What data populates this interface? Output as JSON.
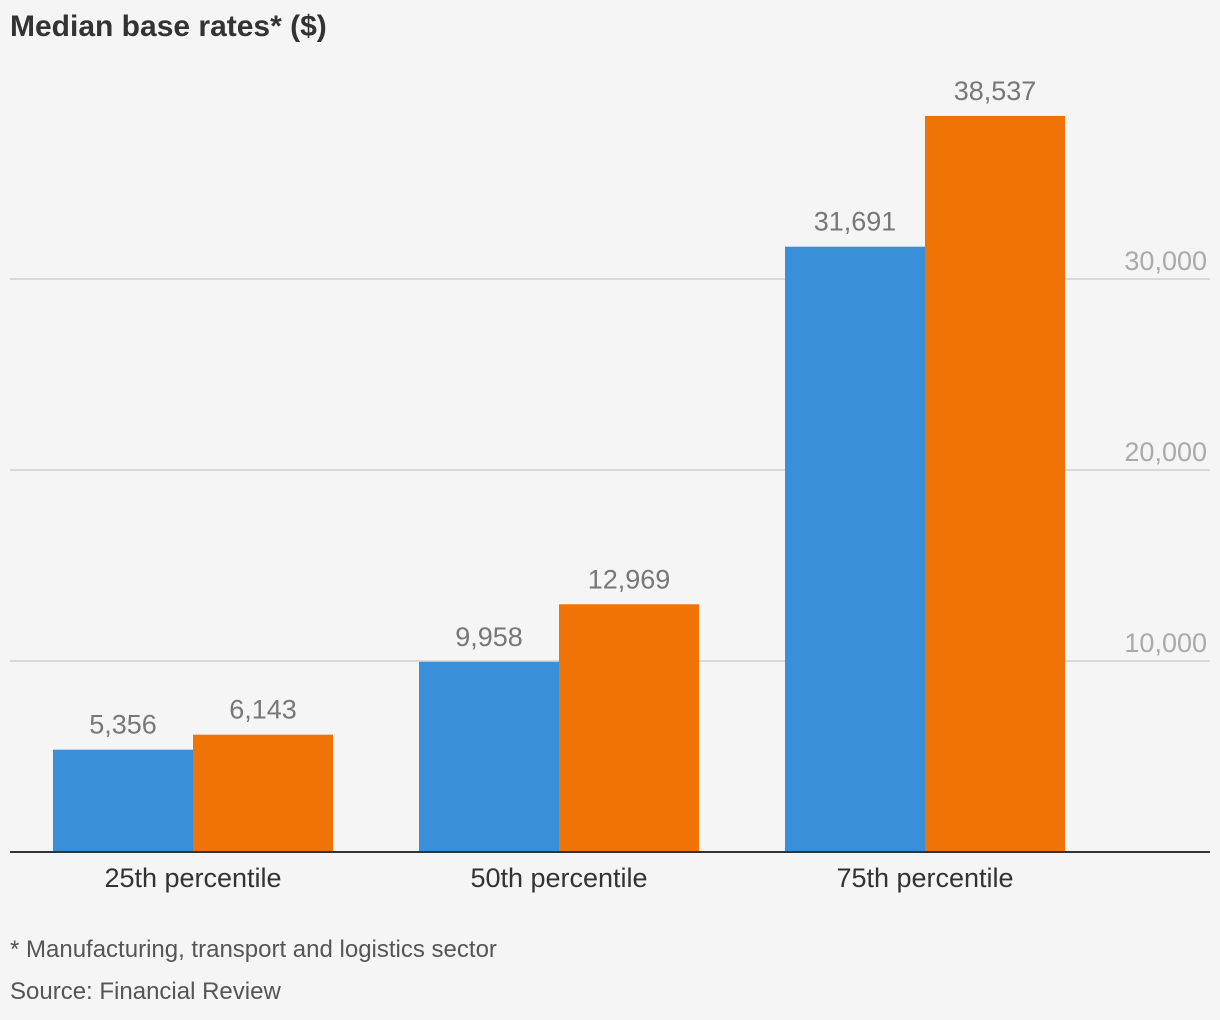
{
  "chart_data": {
    "type": "bar",
    "title": "Median base rates* ($)",
    "categories": [
      "25th percentile",
      "50th percentile",
      "75th percentile"
    ],
    "series": [
      {
        "color": "#3a8fd9",
        "values": [
          5356,
          9958,
          31691
        ],
        "labels": [
          "5,356",
          "9,958",
          "31,691"
        ]
      },
      {
        "color": "#f07306",
        "values": [
          6143,
          12969,
          38537
        ],
        "labels": [
          "6,143",
          "12,969",
          "38,537"
        ]
      }
    ],
    "yticks": [
      10000,
      20000,
      30000
    ],
    "ytick_labels": [
      "10,000",
      "20,000",
      "30,000"
    ],
    "ylim": [
      0,
      40000
    ],
    "grid": true,
    "yaxis_position": "right",
    "legend": false
  },
  "footer": {
    "note": "* Manufacturing, transport and logistics sector",
    "source": "Source: Financial Review"
  },
  "colors": {
    "background": "#f5f5f5",
    "gridline": "#d9d9d9",
    "axis": "#333333",
    "tick_label": "#aaaaaa",
    "value_label": "#777777",
    "category_label": "#333333"
  }
}
